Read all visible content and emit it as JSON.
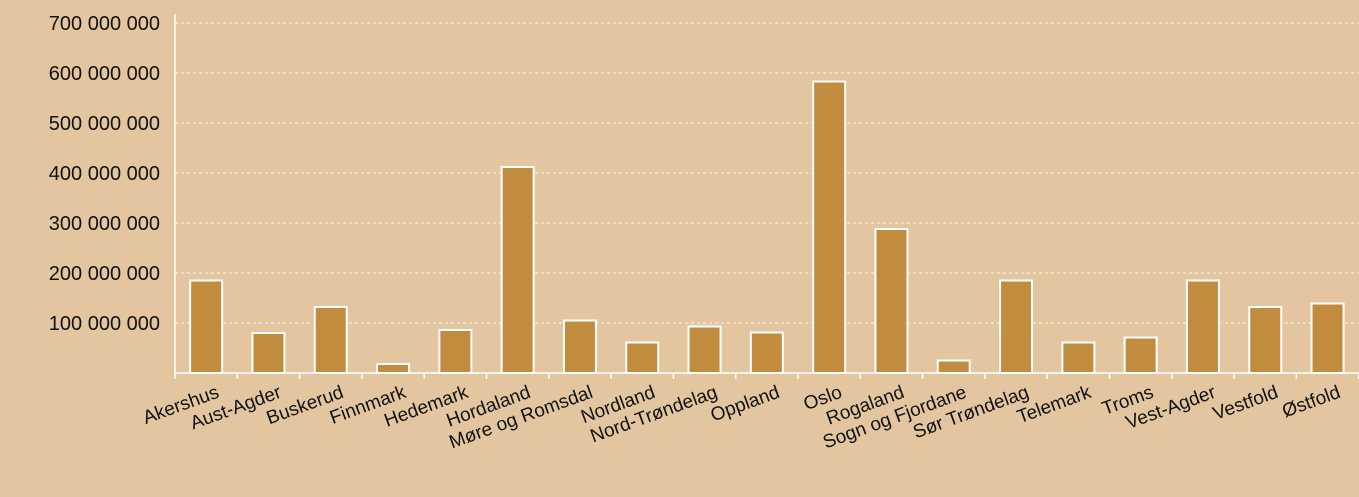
{
  "chart_data": {
    "type": "bar",
    "title": "",
    "xlabel": "",
    "ylabel": "",
    "ylim": [
      0,
      700000000
    ],
    "yticks": [
      100000000,
      200000000,
      300000000,
      400000000,
      500000000,
      600000000,
      700000000
    ],
    "ytick_labels": [
      "100 000 000",
      "200 000 000",
      "300 000 000",
      "400 000 000",
      "500 000 000",
      "600 000 000",
      "700 000 000"
    ],
    "grid": true,
    "bar_color": "#c28c3f",
    "categories": [
      "Akershus",
      "Aust-Agder",
      "Buskerud",
      "Finnmark",
      "Hedemark",
      "Hordaland",
      "Møre og Romsdal",
      "Nordland",
      "Nord-Trøndelag",
      "Oppland",
      "Oslo",
      "Rogaland",
      "Sogn og Fjordane",
      "Sør Trøndelag",
      "Telemark",
      "Troms",
      "Vest-Agder",
      "Vestfold",
      "Østfold"
    ],
    "values": [
      185000000,
      80000000,
      132000000,
      18000000,
      86000000,
      412000000,
      105000000,
      61000000,
      93000000,
      81000000,
      583000000,
      288000000,
      25000000,
      185000000,
      61000000,
      71000000,
      185000000,
      132000000,
      139000000
    ]
  }
}
